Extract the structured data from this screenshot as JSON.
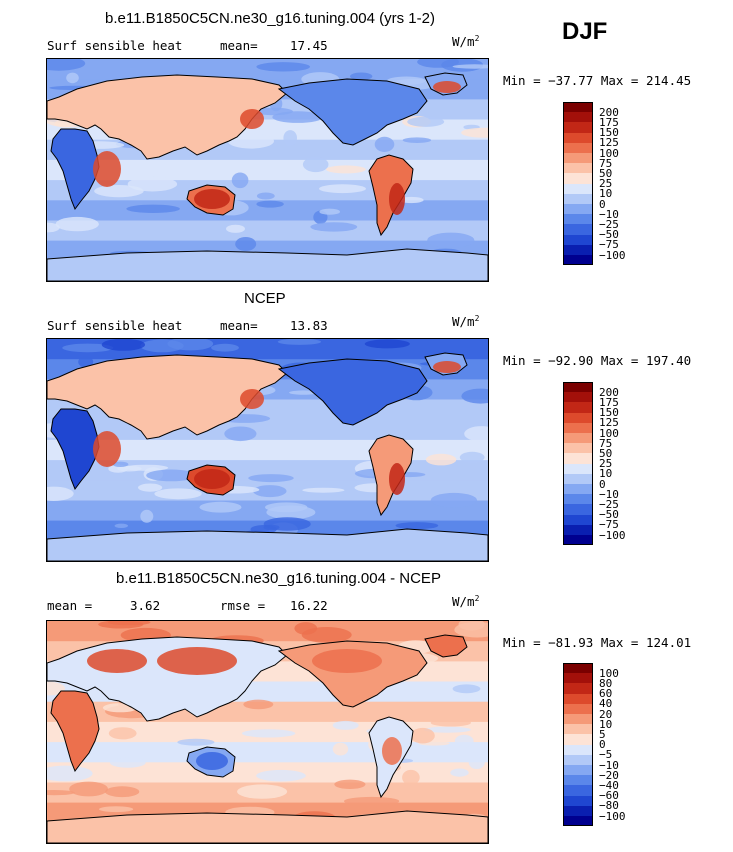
{
  "season": "DJF",
  "panels": [
    {
      "title": "b.e11.B1850C5CN.ne30_g16.tuning.004 (yrs 1-2)",
      "variable": "Surf sensible heat",
      "stat1_label": "mean=",
      "stat1_value": "17.45",
      "stat2_label": "",
      "stat2_value": "",
      "units": "W/m",
      "units_sup": "2",
      "minmax": "Min = −37.77 Max = 214.45",
      "legend_labels": [
        "200",
        "175",
        "150",
        "125",
        "100",
        "75",
        "50",
        "25",
        "10",
        "0",
        "−10",
        "−25",
        "−50",
        "−75",
        "−100"
      ]
    },
    {
      "title": "NCEP",
      "variable": "Surf sensible heat",
      "stat1_label": "mean=",
      "stat1_value": "13.83",
      "stat2_label": "",
      "stat2_value": "",
      "units": "W/m",
      "units_sup": "2",
      "minmax": "Min = −92.90 Max = 197.40",
      "legend_labels": [
        "200",
        "175",
        "150",
        "125",
        "100",
        "75",
        "50",
        "25",
        "10",
        "0",
        "−10",
        "−25",
        "−50",
        "−75",
        "−100"
      ]
    },
    {
      "title": "b.e11.B1850C5CN.ne30_g16.tuning.004 - NCEP",
      "variable": "",
      "stat1_label": "mean =",
      "stat1_value": "3.62",
      "stat2_label": "rmse =",
      "stat2_value": "16.22",
      "units": "W/m",
      "units_sup": "2",
      "minmax": "Min = −81.93 Max = 124.01",
      "legend_labels": [
        "100",
        "80",
        "60",
        "40",
        "20",
        "10",
        "5",
        "0",
        "−5",
        "−10",
        "−20",
        "−40",
        "−60",
        "−80",
        "−100"
      ]
    }
  ],
  "colors": {
    "scale": [
      "#00008f",
      "#0a1fb0",
      "#1f46d1",
      "#3a66e0",
      "#5b87ea",
      "#85a8f2",
      "#b2c9f7",
      "#dbe6fb",
      "#fde3d6",
      "#fbc2a8",
      "#f59a78",
      "#ec704d",
      "#dd4a2c",
      "#c22716",
      "#a3100a",
      "#7a0000"
    ],
    "land_edge": "#000000",
    "ocean_base": "#c9d9f6"
  }
}
